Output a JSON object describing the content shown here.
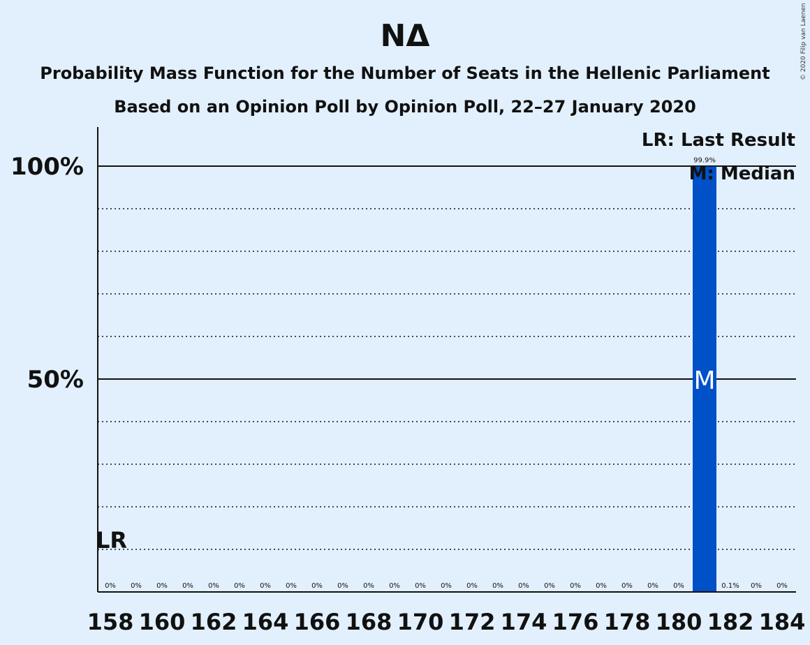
{
  "chart_data": {
    "type": "bar",
    "title": "ΝΔ",
    "subtitle": "Probability Mass Function for the Number of Seats in the Hellenic Parliament",
    "subtitle2": "Based on an Opinion Poll by Opinion Poll, 22–27 January 2020",
    "x": [
      158,
      159,
      160,
      161,
      162,
      163,
      164,
      165,
      166,
      167,
      168,
      169,
      170,
      171,
      172,
      173,
      174,
      175,
      176,
      177,
      178,
      179,
      180,
      181,
      182,
      183,
      184
    ],
    "values": [
      0,
      0,
      0,
      0,
      0,
      0,
      0,
      0,
      0,
      0,
      0,
      0,
      0,
      0,
      0,
      0,
      0,
      0,
      0,
      0,
      0,
      0,
      0,
      99.9,
      0.1,
      0,
      0
    ],
    "value_labels": [
      "0%",
      "0%",
      "0%",
      "0%",
      "0%",
      "0%",
      "0%",
      "0%",
      "0%",
      "0%",
      "0%",
      "0%",
      "0%",
      "0%",
      "0%",
      "0%",
      "0%",
      "0%",
      "0%",
      "0%",
      "0%",
      "0%",
      "0%",
      "99.9%",
      "0.1%",
      "0%",
      "0%"
    ],
    "x_tick_labels": [
      "158",
      "160",
      "162",
      "164",
      "166",
      "168",
      "170",
      "172",
      "174",
      "176",
      "178",
      "180",
      "182",
      "184"
    ],
    "y_tick_labels": [
      "50%",
      "100%"
    ],
    "ylim": [
      0,
      110
    ],
    "grid": true,
    "last_result": {
      "seat": 158,
      "label": "LR"
    },
    "median": {
      "seat": 181,
      "label": "M"
    },
    "legend": {
      "placement": "top-right",
      "lr": "LR: Last Result",
      "m": "M: Median"
    },
    "colors": {
      "bar": "#0050c8",
      "background": "#e2f0fd",
      "text": "#111111"
    }
  },
  "copyright": "© 2020 Filip van Laenen"
}
